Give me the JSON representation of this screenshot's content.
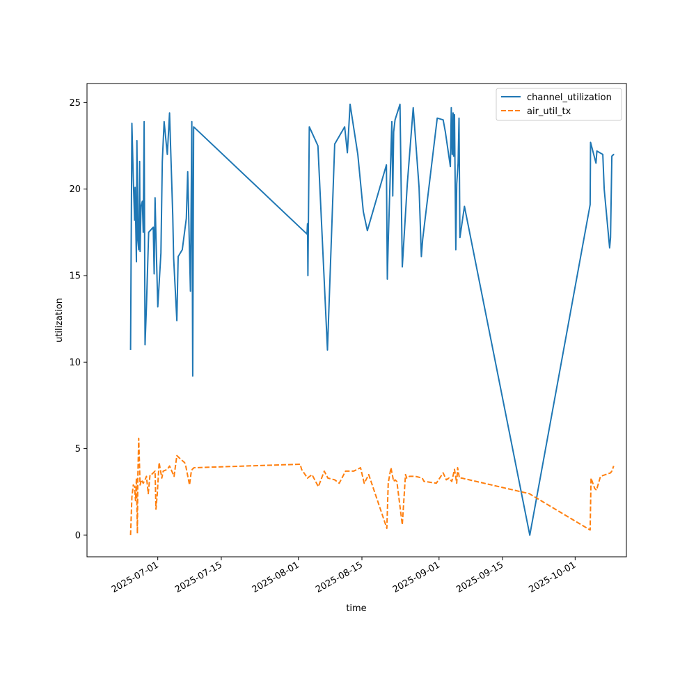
{
  "chart_data": {
    "type": "line",
    "title": "",
    "xlabel": "time",
    "ylabel": "utilization",
    "x_tick_labels": [
      "2025-07-01",
      "2025-07-15",
      "2025-08-01",
      "2025-08-15",
      "2025-09-01",
      "2025-09-15",
      "2025-10-01"
    ],
    "x_tick_days": [
      6,
      20,
      37,
      51,
      68,
      82,
      98
    ],
    "xlim_days": [
      -9.6,
      109.3
    ],
    "y_ticks": [
      0,
      5,
      10,
      15,
      20,
      25
    ],
    "y_tick_labels": [
      "0",
      "5",
      "10",
      "15",
      "20",
      "25"
    ],
    "ylim": [
      -1.25,
      26.1
    ],
    "grid": false,
    "legend_position": "top-right",
    "x_unit": "days since 2025-06-25",
    "series": [
      {
        "name": "channel_utilization",
        "color": "#1f77b4",
        "dash": "solid",
        "x": [
          0.0,
          0.3,
          0.6,
          0.9,
          1.0,
          1.3,
          1.4,
          1.6,
          1.8,
          2.0,
          2.1,
          2.3,
          2.6,
          2.8,
          3.0,
          3.2,
          3.5,
          4.0,
          5.0,
          5.2,
          5.4,
          5.6,
          6.0,
          6.7,
          7.0,
          7.4,
          8.1,
          8.6,
          9.3,
          9.5,
          10.2,
          10.5,
          11.4,
          12.3,
          12.6,
          13.2,
          13.5,
          13.7,
          13.9,
          38.9,
          39.0,
          39.1,
          39.4,
          41.3,
          43.4,
          45.0,
          47.2,
          47.8,
          48.4,
          50.1,
          51.3,
          52.2,
          56.4,
          56.6,
          56.8,
          57.6,
          57.8,
          58.0,
          58.3,
          59.4,
          59.9,
          61.0,
          62.3,
          63.6,
          64.1,
          64.4,
          67.6,
          68.9,
          69.4,
          70.5,
          70.7,
          70.9,
          71.1,
          71.2,
          71.4,
          71.7,
          71.9,
          72.2,
          72.4,
          72.6,
          73.6,
          88.0,
          101.3,
          101.4,
          102.6,
          102.8,
          104.1,
          104.4,
          105.6,
          105.8,
          106.1,
          106.5,
          106.6
        ]
      },
      {
        "name": "air_util_tx",
        "color": "#ff7f0e",
        "dash": "dashed",
        "x": [
          0.0,
          0.3,
          0.6,
          0.9,
          1.1,
          1.3,
          1.5,
          1.6,
          1.8,
          2.1,
          2.4,
          2.8,
          3.2,
          3.5,
          3.9,
          4.3,
          4.6,
          5.4,
          5.6,
          5.9,
          6.3,
          6.9,
          7.2,
          8.1,
          8.6,
          9.6,
          10.2,
          11.0,
          11.9,
          12.1,
          13.0,
          13.4,
          13.6,
          14.0,
          37.4,
          37.7,
          39.0,
          40.0,
          41.4,
          42.7,
          43.5,
          45.0,
          46.0,
          47.4,
          48.2,
          48.4,
          49.2,
          50.7,
          51.5,
          52.5,
          56.5,
          56.8,
          57.4,
          58.0,
          58.3,
          58.7,
          59.9,
          60.6,
          60.9,
          61.5,
          62.8,
          64.3,
          64.7,
          65.0,
          67.4,
          68.9,
          69.6,
          70.2,
          70.8,
          71.4,
          71.9,
          72.1,
          72.5,
          73.0,
          87.9,
          101.3,
          101.5,
          102.3,
          102.7,
          103.6,
          105.8,
          106.1,
          106.5
        ]
      }
    ]
  }
}
